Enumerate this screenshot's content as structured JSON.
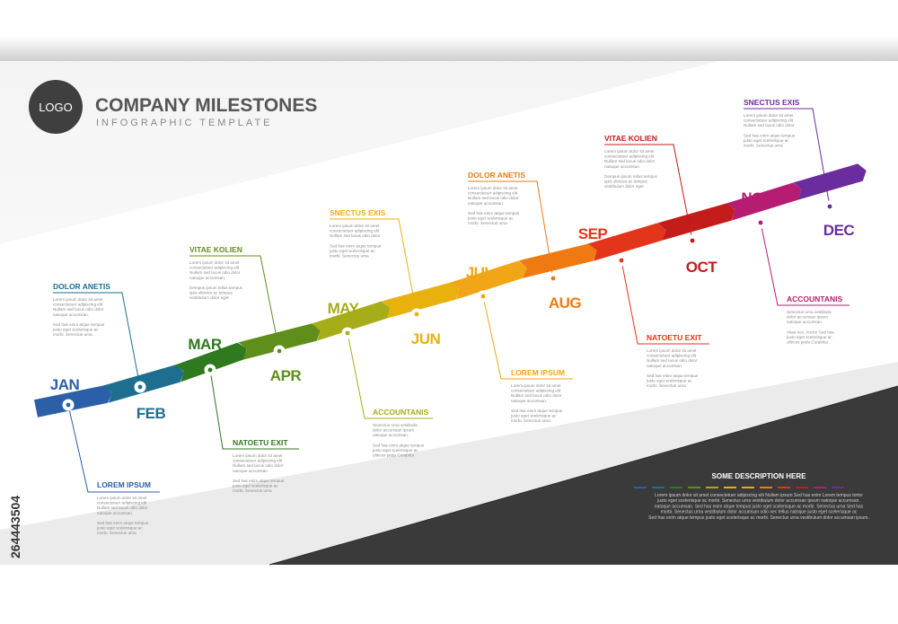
{
  "header": {
    "logo": "LOGO",
    "title": "COMPANY MILESTONES",
    "subtitle": "INFOGRAPHIC TEMPLATE"
  },
  "side_id": "264443504",
  "milestones": [
    {
      "month": "JAN",
      "title": "LOREM IPSUM",
      "color": "#2b5fa8",
      "lines": [
        "Lorem ipsum dolor sit amet",
        "consectetuer adipiscing elit",
        "Nullam sed lacus odio dolor",
        "natoque accumsan.",
        "",
        "Sed has enim atque tempus",
        "justo eget scelerisque ac",
        "morbi. Senectus urna"
      ]
    },
    {
      "month": "FEB",
      "title": "DOLOR ANETIS",
      "color": "#1d6e8f",
      "lines": [
        "Lorem ipsum dolor sit amet",
        "consectetuer adipiscing elit",
        "Nullam sed lacus odio dolor",
        "natoque accumsan.",
        "",
        "Sed has enim atque tempus",
        "justo eget scelerisque ac",
        "morbi. Senectus urna"
      ]
    },
    {
      "month": "MAR",
      "title": "NATOETU EXIT",
      "color": "#2f7a1f",
      "lines": [
        "Lorem ipsum dolor sit amet",
        "consectetuer adipiscing elit",
        "Nullam sed lacus odio dolor",
        "natoque accumsan.",
        "",
        "Sed has enim atque tempus",
        "justo eget scelerisque ac",
        "morbi. Senectus urna"
      ]
    },
    {
      "month": "APR",
      "title": "VITAE KOLIEN",
      "color": "#5f8f1a",
      "lines": [
        "Lorem ipsum dolor sit amet",
        "consectetuer adipiscing elit",
        "Nullam sed lacus odio dolor",
        "natoque accumsan.",
        "",
        "Dempus ipsum tellus tempus",
        "quis ultricies ac tempus",
        "vestibulum dolor eget"
      ]
    },
    {
      "month": "MAY",
      "title": "ACCOUNTANIS",
      "color": "#a6ad18",
      "lines": [
        "Senectus urna vestibulis",
        "dolor accumsan ipsum",
        "natoque accumsan.",
        "",
        "Sed has enim atque tempus",
        "justo eget scelerisque ac",
        "ultrices pede Curabitur"
      ]
    },
    {
      "month": "JUN",
      "title": "SNECTUS EXIS",
      "color": "#e8b10e",
      "lines": [
        "Lorem ipsum dolor sit amet",
        "consectetuer adipiscing elit",
        "Nullam sed lacus odio dolor",
        "",
        "Sed has enim atque tempus",
        "justo eget scelerisque ac",
        "morbi. Senectus urna"
      ]
    },
    {
      "month": "JUL",
      "title": "LOREM IPSUM",
      "color": "#f2a516",
      "lines": [
        "Lorem ipsum dolor sit amet",
        "consectetuer adipiscing elit",
        "Nullam sed lacus odio dolor",
        "natoque accumsan.",
        "",
        "Sed has enim atque tempus",
        "justo eget scelerisque ac",
        "morbi. Senectus urna"
      ]
    },
    {
      "month": "AUG",
      "title": "DOLOR ANETIS",
      "color": "#ef7a12",
      "lines": [
        "Lorem ipsum dolor sit amet",
        "consectetuer adipiscing elit",
        "Nullam sed lacus odio dolor",
        "natoque accumsan.",
        "",
        "Sed has enim atque tempus",
        "justo eget scelerisque ac",
        "morbi. Senectus urna"
      ]
    },
    {
      "month": "SEP",
      "title": "NATOETU EXIT",
      "color": "#e3351a",
      "lines": [
        "Lorem ipsum dolor sit amet",
        "consectetuer adipiscing elit",
        "Nullam sed lacus odio dolor",
        "natoque accumsan.",
        "",
        "Sed has enim atque tempus",
        "justo eget scelerisque ac",
        "morbi. Senectus urna"
      ]
    },
    {
      "month": "OCT",
      "title": "VITAE KOLIEN",
      "color": "#c41b1b",
      "lines": [
        "Lorem ipsum dolor sit amet",
        "consectetuer adipiscing elit",
        "Nullam sed lacus odio dolor",
        "natoque accumsan.",
        "",
        "Dempus ipsum tellus tempus",
        "quis ultricies ac tempus",
        "vestibulum dolor eget"
      ]
    },
    {
      "month": "NOV",
      "title": "ACCOUNTANIS",
      "color": "#b51c72",
      "lines": [
        "Senectus urna vestibulis",
        "dolor accumsan ipsum",
        "natoque accumsan.",
        "",
        "Vitae nec. Auctor Sed has",
        "justo eget scelerisque ac",
        "ultrices pede Curabitur"
      ]
    },
    {
      "month": "DEC",
      "title": "SNECTUS EXIS",
      "color": "#6b2d9e",
      "lines": [
        "Lorem ipsum dolor sit amet",
        "consectetuer adipiscing elit",
        "Nullam sed lacus odio dolor",
        "",
        "Sed has enim atque tempus",
        "justo eget scelerisque ac",
        "morbi. Senectus urna"
      ]
    }
  ],
  "description": {
    "title": "SOME DESCRIPTION HERE",
    "lines": [
      "Lorem ipsum dolor sit amet consectetuer adipiscing elit Nullam ipsum Sed has enim Lorem tempus tortor",
      "justo eget scelerisque ac morbi. Senectus urna vestibulum dolor accumsan ipsum natoque accumsan.",
      "natoque accumsan. Sed has enim atque tempus justo eget scelerisque ac morbi. Senectus urna Sed has",
      "morbi. Senectus urna vestibulum dolor accumsan odio nec tellus natoque justo eget scelerisque ac",
      "Sed has enim atque tempus justo eget scelerisque ac morbi. Senectus urna vestibulum dolor accumsan ipsum."
    ]
  }
}
